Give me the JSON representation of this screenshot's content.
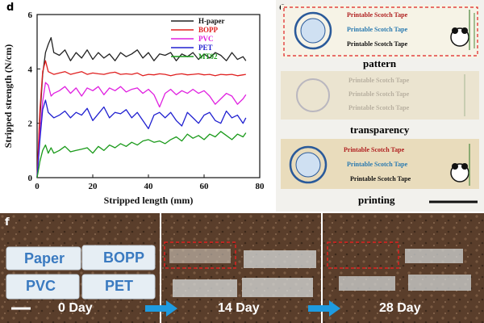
{
  "panel_d": {
    "label": "d",
    "chart_data": {
      "type": "line",
      "xlabel": "Stripped length (mm)",
      "ylabel": "Stripped strength (N/cm)",
      "xlim": [
        0,
        80
      ],
      "ylim": [
        0,
        6
      ],
      "xticks": [
        0,
        20,
        40,
        60,
        80
      ],
      "yticks": [
        0,
        2,
        4,
        6
      ],
      "legend_position": "top-right",
      "series": [
        {
          "name": "H-paper",
          "color": "#222222",
          "x": [
            0,
            1,
            2,
            3,
            4,
            5,
            6,
            8,
            10,
            12,
            14,
            16,
            18,
            20,
            22,
            24,
            26,
            28,
            30,
            32,
            34,
            36,
            38,
            40,
            42,
            44,
            46,
            48,
            50,
            52,
            54,
            56,
            58,
            60,
            62,
            64,
            66,
            68,
            70,
            72,
            74,
            75
          ],
          "y": [
            0,
            2.2,
            3.8,
            4.6,
            4.9,
            5.15,
            4.6,
            4.5,
            4.7,
            4.3,
            4.6,
            4.4,
            4.7,
            4.35,
            4.6,
            4.4,
            4.55,
            4.3,
            4.6,
            4.45,
            4.55,
            4.7,
            4.4,
            4.6,
            4.3,
            4.55,
            4.5,
            4.6,
            4.3,
            4.55,
            4.45,
            4.6,
            4.35,
            4.55,
            4.4,
            4.6,
            4.5,
            4.3,
            4.6,
            4.35,
            4.45,
            4.3
          ]
        },
        {
          "name": "BOPP",
          "color": "#e02020",
          "x": [
            0,
            1,
            2,
            3,
            4,
            5,
            6,
            8,
            10,
            12,
            14,
            16,
            18,
            20,
            22,
            24,
            26,
            28,
            30,
            32,
            34,
            36,
            38,
            40,
            42,
            44,
            46,
            48,
            50,
            52,
            54,
            56,
            58,
            60,
            62,
            64,
            66,
            68,
            70,
            72,
            74,
            75
          ],
          "y": [
            0,
            2.5,
            3.9,
            4.3,
            3.9,
            3.85,
            3.8,
            3.85,
            3.9,
            3.8,
            3.85,
            3.9,
            3.8,
            3.85,
            3.82,
            3.8,
            3.85,
            3.88,
            3.8,
            3.82,
            3.8,
            3.85,
            3.75,
            3.8,
            3.78,
            3.82,
            3.8,
            3.75,
            3.8,
            3.82,
            3.78,
            3.8,
            3.82,
            3.78,
            3.8,
            3.75,
            3.8,
            3.78,
            3.8,
            3.75,
            3.78,
            3.8
          ]
        },
        {
          "name": "PVC",
          "color": "#e020e0",
          "x": [
            0,
            1,
            2,
            3,
            4,
            5,
            6,
            8,
            10,
            12,
            14,
            16,
            18,
            20,
            22,
            24,
            26,
            28,
            30,
            32,
            34,
            36,
            38,
            40,
            42,
            44,
            46,
            48,
            50,
            52,
            54,
            56,
            58,
            60,
            62,
            64,
            66,
            68,
            70,
            72,
            74,
            75
          ],
          "y": [
            0,
            1.6,
            2.8,
            3.5,
            3.4,
            3.0,
            3.1,
            3.2,
            3.35,
            3.1,
            3.3,
            3.0,
            3.3,
            3.2,
            3.35,
            3.05,
            3.3,
            3.2,
            3.35,
            3.15,
            3.25,
            3.3,
            3.1,
            3.25,
            3.05,
            2.6,
            3.1,
            3.25,
            3.05,
            3.2,
            3.1,
            3.25,
            3.1,
            3.2,
            3.0,
            2.7,
            2.9,
            3.1,
            3.0,
            2.7,
            2.9,
            3.05
          ]
        },
        {
          "name": "PET",
          "color": "#2020d0",
          "x": [
            0,
            1,
            2,
            3,
            4,
            5,
            6,
            8,
            10,
            12,
            14,
            16,
            18,
            20,
            22,
            24,
            26,
            28,
            30,
            32,
            34,
            36,
            38,
            40,
            42,
            44,
            46,
            48,
            50,
            52,
            54,
            56,
            58,
            60,
            62,
            64,
            66,
            68,
            70,
            72,
            74,
            75
          ],
          "y": [
            0,
            1.4,
            2.5,
            2.85,
            2.4,
            2.3,
            2.2,
            2.3,
            2.45,
            2.2,
            2.4,
            2.3,
            2.55,
            2.1,
            2.35,
            2.6,
            2.2,
            2.4,
            2.35,
            2.5,
            2.2,
            2.4,
            2.1,
            1.8,
            2.3,
            2.4,
            2.2,
            2.4,
            2.1,
            1.9,
            2.4,
            2.2,
            2.0,
            2.3,
            2.4,
            2.1,
            2.0,
            2.45,
            2.2,
            2.3,
            2.0,
            2.2
          ]
        },
        {
          "name": "MT02",
          "color": "#1a9a1a",
          "x": [
            0,
            1,
            2,
            3,
            4,
            5,
            6,
            8,
            10,
            12,
            14,
            16,
            18,
            20,
            22,
            24,
            26,
            28,
            30,
            32,
            34,
            36,
            38,
            40,
            42,
            44,
            46,
            48,
            50,
            52,
            54,
            56,
            58,
            60,
            62,
            64,
            66,
            68,
            70,
            72,
            74,
            75
          ],
          "y": [
            0,
            0.6,
            1.0,
            1.2,
            0.9,
            1.1,
            0.9,
            1.0,
            1.15,
            0.95,
            1.0,
            1.05,
            1.1,
            0.9,
            1.15,
            1.0,
            1.2,
            1.1,
            1.25,
            1.15,
            1.3,
            1.2,
            1.35,
            1.4,
            1.3,
            1.35,
            1.25,
            1.4,
            1.5,
            1.35,
            1.6,
            1.45,
            1.55,
            1.4,
            1.6,
            1.5,
            1.7,
            1.55,
            1.4,
            1.6,
            1.5,
            1.65
          ]
        }
      ]
    }
  },
  "panel_e": {
    "label": "e",
    "captions": [
      "pattern",
      "transparency",
      "printing"
    ],
    "tape_lines": [
      "Printable Scotch Tape",
      "Printable Scotch Tape",
      "Printable Scotch Tape"
    ],
    "line_colors": [
      "#b02020",
      "#2a7ab0",
      "#111111"
    ]
  },
  "panel_f": {
    "label": "f",
    "days": [
      "0 Day",
      "14 Day",
      "28 Day"
    ],
    "tapes": [
      "Paper",
      "BOPP",
      "PVC",
      "PET"
    ],
    "soil_color": "#5a3e2b",
    "arrow_color": "#1e9be0",
    "highlight_color": "#e02020"
  }
}
